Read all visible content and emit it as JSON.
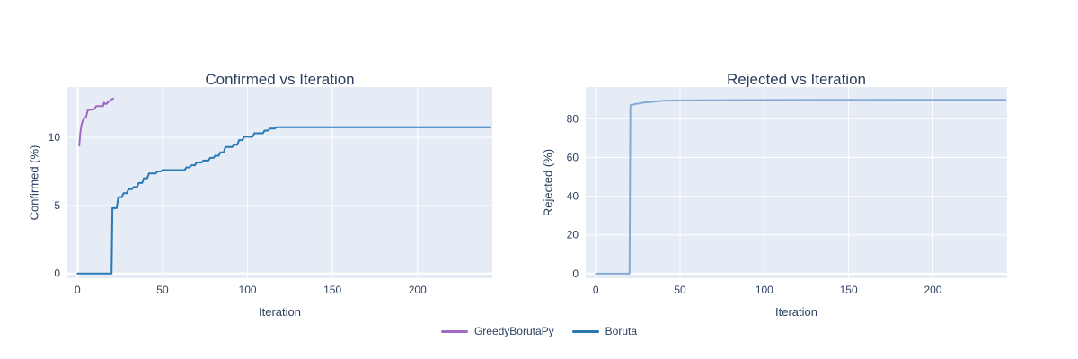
{
  "figure": {
    "background": "#ffffff",
    "font_color": "#2a3f5f"
  },
  "legend": {
    "items": [
      {
        "label": "GreedyBorutaPy",
        "color": "#a069c3"
      },
      {
        "label": "Boruta",
        "color": "#2a78b4"
      }
    ]
  },
  "chart_data": [
    {
      "type": "line",
      "title": "Confirmed vs Iteration",
      "xlabel": "Iteration",
      "ylabel": "Confirmed (%)",
      "xlim": [
        -6,
        244
      ],
      "ylim": [
        -0.35,
        13.7
      ],
      "xticks": [
        0,
        50,
        100,
        150,
        200
      ],
      "yticks": [
        0,
        5,
        10
      ],
      "grid": true,
      "legend_position": "bottom-center",
      "plot_bg": "#e5ecf6",
      "grid_color": "#ffffff",
      "font_color": "#2a3f5f",
      "series": [
        {
          "name": "GreedyBorutaPy",
          "color": "#a069c3",
          "width": 2,
          "x": [
            1,
            1.5,
            2,
            2.5,
            3,
            4,
            5,
            6,
            9,
            10,
            11,
            15,
            15.5,
            16.5,
            17.5,
            18,
            19,
            20,
            21
          ],
          "y": [
            9.4,
            10.2,
            10.7,
            11.0,
            11.2,
            11.4,
            11.5,
            12.0,
            12.05,
            12.1,
            12.3,
            12.3,
            12.55,
            12.45,
            12.5,
            12.65,
            12.65,
            12.8,
            12.85
          ]
        },
        {
          "name": "Boruta",
          "color": "#2a78b4",
          "width": 2,
          "x": [
            0,
            20,
            20.5,
            23,
            24,
            26,
            27,
            29,
            30,
            32,
            33,
            35,
            36,
            38,
            39,
            41,
            42,
            46,
            47,
            49,
            50,
            63,
            64,
            66,
            67,
            69,
            70,
            73,
            74,
            77,
            78,
            80,
            81,
            83,
            84,
            86,
            87,
            91,
            92,
            94,
            95,
            97,
            98,
            103,
            104,
            109,
            110,
            112,
            113,
            116,
            117,
            243
          ],
          "y": [
            0,
            0,
            4.8,
            4.8,
            5.6,
            5.6,
            5.9,
            5.9,
            6.2,
            6.2,
            6.35,
            6.35,
            6.65,
            6.65,
            7.0,
            7.0,
            7.35,
            7.35,
            7.5,
            7.5,
            7.6,
            7.6,
            7.8,
            7.8,
            7.95,
            7.95,
            8.15,
            8.15,
            8.3,
            8.3,
            8.5,
            8.5,
            8.65,
            8.65,
            8.9,
            8.9,
            9.3,
            9.3,
            9.45,
            9.45,
            9.8,
            9.8,
            10.05,
            10.05,
            10.3,
            10.3,
            10.5,
            10.5,
            10.65,
            10.65,
            10.75,
            10.75
          ]
        }
      ]
    },
    {
      "type": "line",
      "title": "Rejected vs Iteration",
      "xlabel": "Iteration",
      "ylabel": "Rejected (%)",
      "xlim": [
        -6,
        244
      ],
      "ylim": [
        -2.4,
        96.4
      ],
      "xticks": [
        0,
        50,
        100,
        150,
        200
      ],
      "yticks": [
        0,
        20,
        40,
        60,
        80
      ],
      "grid": true,
      "plot_bg": "#e5ecf6",
      "grid_color": "#ffffff",
      "font_color": "#2a3f5f",
      "series": [
        {
          "name": "Boruta",
          "color": "#85aad6",
          "width": 2,
          "x": [
            0,
            20,
            20.5,
            22,
            23,
            25,
            27,
            30,
            34,
            40,
            50,
            90,
            243
          ],
          "y": [
            0,
            0,
            87.0,
            87.2,
            87.6,
            87.8,
            88.2,
            88.5,
            88.8,
            89.3,
            89.5,
            89.7,
            89.8
          ]
        }
      ]
    }
  ]
}
